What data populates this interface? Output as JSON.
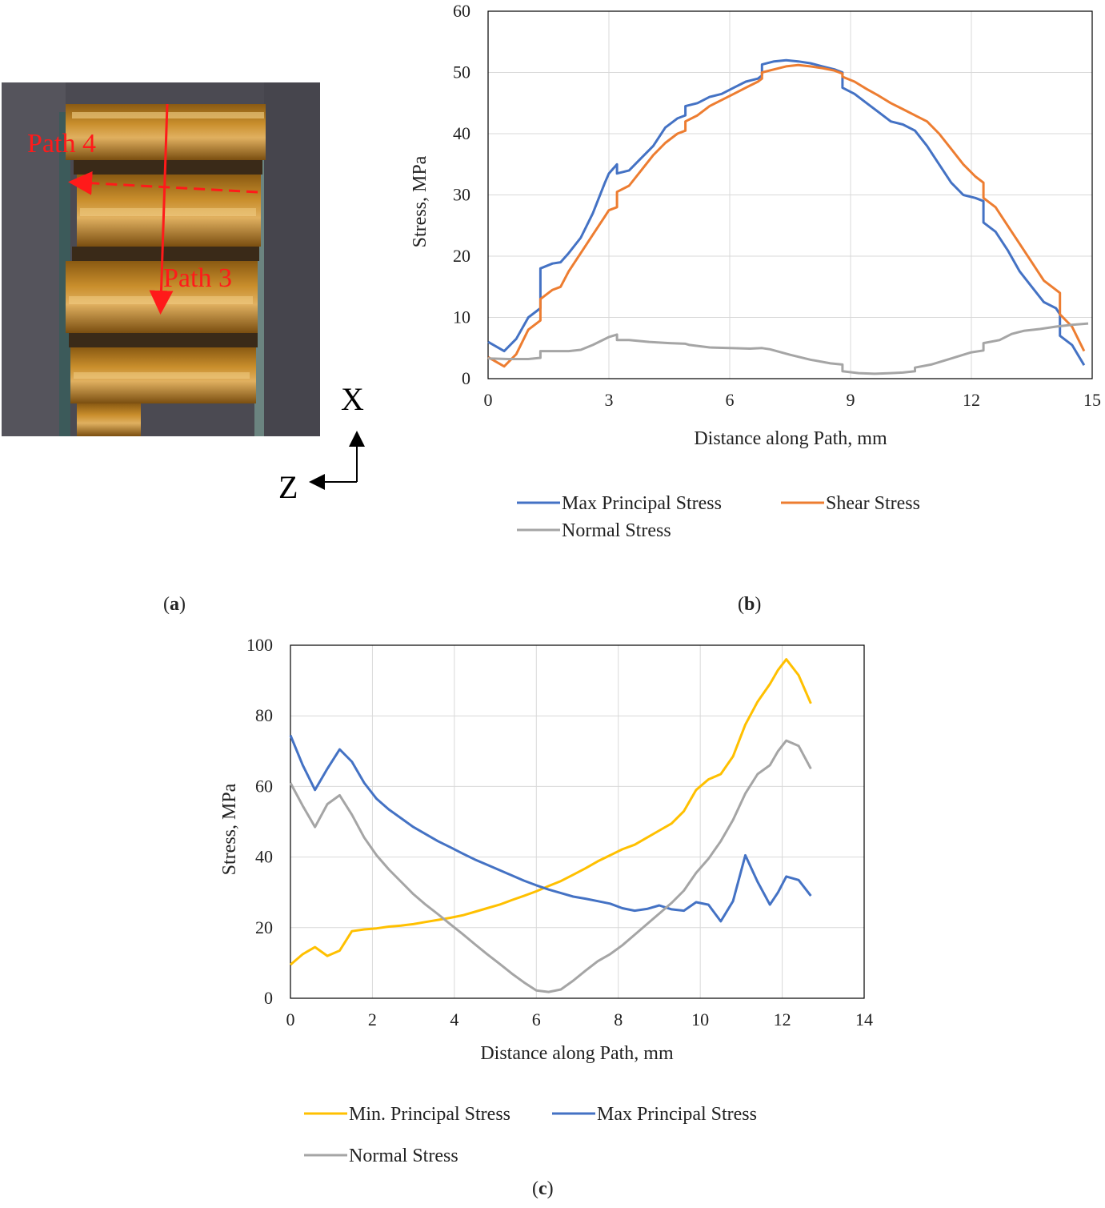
{
  "panels": {
    "a": {
      "paren_open": "(",
      "letter": "a",
      "paren_close": ")"
    },
    "b": {
      "paren_open": "(",
      "letter": "b",
      "paren_close": ")"
    },
    "c": {
      "paren_open": "(",
      "letter": "c",
      "paren_close": ")"
    }
  },
  "photo": {
    "path4_label": "Path 4",
    "path3_label": "Path 3",
    "axis_x_label": "X",
    "axis_z_label": "Z",
    "colors": {
      "annotation": "#ff1a1a",
      "background": "#4b4a52",
      "specimen": "#b07a22"
    }
  },
  "chart_data": [
    {
      "id": "b",
      "type": "line",
      "xlabel": "Distance along Path, mm",
      "ylabel": "Stress, MPa",
      "xlim": [
        0,
        15
      ],
      "ylim": [
        0,
        60
      ],
      "xticks": [
        0,
        3,
        6,
        9,
        12,
        15
      ],
      "yticks": [
        0,
        10,
        20,
        30,
        40,
        50,
        60
      ],
      "grid": true,
      "legend_position": "bottom",
      "series": [
        {
          "name": "Max Principal Stress",
          "color": "#4472c4",
          "x": [
            0,
            0.4,
            0.7,
            1.0,
            1.3,
            1.3,
            1.6,
            1.8,
            2.0,
            2.3,
            2.6,
            2.9,
            3.0,
            3.2,
            3.2,
            3.5,
            3.8,
            4.1,
            4.4,
            4.7,
            4.9,
            4.9,
            5.2,
            5.5,
            5.8,
            6.1,
            6.4,
            6.7,
            6.8,
            6.8,
            7.1,
            7.4,
            7.7,
            8.0,
            8.3,
            8.6,
            8.8,
            8.8,
            9.1,
            9.4,
            9.7,
            10.0,
            10.3,
            10.6,
            10.9,
            11.2,
            11.5,
            11.8,
            12.1,
            12.3,
            12.3,
            12.6,
            12.9,
            13.2,
            13.5,
            13.8,
            14.1,
            14.2,
            14.2,
            14.5,
            14.8
          ],
          "y": [
            6,
            4.5,
            6.5,
            10,
            11.5,
            18,
            18.8,
            19,
            20.5,
            23,
            27,
            32,
            33.5,
            35,
            33.5,
            34,
            36,
            38,
            41,
            42.5,
            43,
            44.5,
            45,
            46,
            46.5,
            47.5,
            48.5,
            49,
            49.5,
            51.3,
            51.8,
            52,
            51.8,
            51.5,
            51,
            50.5,
            50,
            47.5,
            46.5,
            45,
            43.5,
            42,
            41.5,
            40.5,
            38,
            35,
            32,
            30,
            29.5,
            29,
            25.5,
            24,
            21,
            17.5,
            15,
            12.5,
            11.5,
            10.5,
            7,
            5.5,
            2.2
          ]
        },
        {
          "name": "Shear Stress",
          "color": "#ed7d31",
          "x": [
            0,
            0.4,
            0.7,
            1.0,
            1.3,
            1.3,
            1.6,
            1.8,
            2.0,
            2.3,
            2.6,
            2.9,
            3.0,
            3.2,
            3.2,
            3.5,
            3.8,
            4.1,
            4.4,
            4.7,
            4.9,
            4.9,
            5.2,
            5.5,
            5.8,
            6.1,
            6.4,
            6.7,
            6.8,
            6.8,
            7.1,
            7.4,
            7.7,
            8.0,
            8.3,
            8.6,
            8.8,
            8.8,
            9.1,
            9.4,
            9.7,
            10.0,
            10.3,
            10.6,
            10.9,
            11.2,
            11.5,
            11.8,
            12.1,
            12.3,
            12.3,
            12.6,
            12.9,
            13.2,
            13.5,
            13.8,
            14.1,
            14.2,
            14.2,
            14.5,
            14.8
          ],
          "y": [
            3.5,
            2,
            4,
            8,
            9.5,
            13,
            14.5,
            15,
            17.5,
            20.5,
            23.5,
            26.5,
            27.5,
            28,
            30.5,
            31.5,
            34,
            36.5,
            38.5,
            40,
            40.5,
            42,
            43,
            44.5,
            45.5,
            46.5,
            47.5,
            48.5,
            49,
            50,
            50.5,
            51,
            51.2,
            51,
            50.7,
            50.3,
            49.8,
            49.3,
            48.5,
            47.3,
            46.2,
            45,
            44,
            43,
            42,
            40,
            37.5,
            35,
            33,
            32,
            29.5,
            28,
            25,
            22,
            19,
            16,
            14.5,
            14,
            10.5,
            8.5,
            4.5
          ]
        },
        {
          "name": "Normal Stress",
          "color": "#a5a5a5",
          "x": [
            0,
            0.5,
            1.0,
            1.3,
            1.3,
            2.0,
            2.3,
            2.6,
            3.0,
            3.2,
            3.2,
            3.5,
            4.0,
            4.5,
            4.9,
            5.0,
            5.5,
            6.0,
            6.5,
            6.8,
            7.0,
            7.5,
            8.0,
            8.5,
            8.8,
            8.8,
            9.2,
            9.6,
            10.0,
            10.3,
            10.6,
            10.6,
            11.0,
            11.5,
            12.0,
            12.3,
            12.3,
            12.7,
            13.0,
            13.3,
            13.7,
            14.1,
            14.5,
            14.9
          ],
          "y": [
            3.3,
            3.2,
            3.2,
            3.4,
            4.5,
            4.5,
            4.7,
            5.5,
            6.8,
            7.2,
            6.3,
            6.3,
            6.0,
            5.8,
            5.7,
            5.5,
            5.1,
            5.0,
            4.9,
            5.0,
            4.8,
            3.9,
            3.1,
            2.5,
            2.3,
            1.2,
            0.9,
            0.8,
            0.9,
            1.0,
            1.2,
            1.8,
            2.3,
            3.3,
            4.3,
            4.6,
            5.8,
            6.3,
            7.3,
            7.8,
            8.1,
            8.5,
            8.8,
            9.0
          ]
        }
      ]
    },
    {
      "id": "c",
      "type": "line",
      "xlabel": "Distance along Path, mm",
      "ylabel": "Stress, MPa",
      "xlim": [
        0,
        14
      ],
      "ylim": [
        0,
        100
      ],
      "xticks": [
        0,
        2,
        4,
        6,
        8,
        10,
        12,
        14
      ],
      "yticks": [
        0,
        20,
        40,
        60,
        80,
        100
      ],
      "grid": true,
      "legend_position": "bottom",
      "series": [
        {
          "name": "Min. Principal Stress",
          "color": "#ffc000",
          "x": [
            0,
            0.3,
            0.6,
            0.9,
            1.2,
            1.5,
            1.8,
            2.1,
            2.4,
            2.7,
            3.0,
            3.3,
            3.6,
            3.9,
            4.2,
            4.5,
            4.8,
            5.1,
            5.4,
            5.7,
            6.0,
            6.3,
            6.6,
            6.9,
            7.2,
            7.5,
            7.8,
            8.1,
            8.4,
            8.7,
            9.0,
            9.3,
            9.6,
            9.9,
            10.2,
            10.5,
            10.8,
            11.1,
            11.4,
            11.7,
            11.9,
            12.1,
            12.4,
            12.7
          ],
          "y": [
            9.5,
            12.5,
            14.5,
            12,
            13.5,
            19,
            19.5,
            19.8,
            20.3,
            20.6,
            21,
            21.6,
            22.2,
            22.8,
            23.5,
            24.5,
            25.5,
            26.5,
            27.8,
            29,
            30.3,
            31.8,
            33.2,
            35,
            36.8,
            38.8,
            40.5,
            42.2,
            43.5,
            45.5,
            47.5,
            49.5,
            53,
            59,
            62,
            63.5,
            68.5,
            77.5,
            84,
            89,
            93,
            96,
            91.5,
            83.5
          ]
        },
        {
          "name": "Max Principal Stress",
          "color": "#4472c4",
          "x": [
            0,
            0.3,
            0.6,
            0.9,
            1.2,
            1.5,
            1.8,
            2.1,
            2.4,
            2.7,
            3.0,
            3.3,
            3.6,
            3.9,
            4.2,
            4.5,
            4.8,
            5.1,
            5.4,
            5.7,
            6.0,
            6.3,
            6.6,
            6.9,
            7.2,
            7.5,
            7.8,
            8.1,
            8.4,
            8.7,
            9.0,
            9.3,
            9.6,
            9.9,
            10.2,
            10.5,
            10.8,
            11.1,
            11.4,
            11.7,
            11.9,
            12.1,
            12.4,
            12.7
          ],
          "y": [
            74.5,
            66,
            59,
            65,
            70.5,
            67,
            61,
            56.5,
            53.5,
            51,
            48.5,
            46.5,
            44.5,
            42.8,
            41,
            39.3,
            37.8,
            36.3,
            34.8,
            33.3,
            32,
            30.8,
            29.8,
            28.8,
            28.2,
            27.5,
            26.8,
            25.5,
            24.8,
            25.3,
            26.3,
            25.2,
            24.8,
            27.2,
            26.5,
            21.8,
            27.5,
            40.5,
            33,
            26.5,
            30,
            34.5,
            33.5,
            29
          ]
        },
        {
          "name": "Normal Stress",
          "color": "#a5a5a5",
          "x": [
            0,
            0.3,
            0.6,
            0.9,
            1.2,
            1.5,
            1.8,
            2.1,
            2.4,
            2.7,
            3.0,
            3.3,
            3.6,
            3.9,
            4.2,
            4.5,
            4.8,
            5.1,
            5.4,
            5.7,
            6.0,
            6.3,
            6.6,
            6.9,
            7.2,
            7.5,
            7.8,
            8.1,
            8.4,
            8.7,
            9.0,
            9.3,
            9.6,
            9.9,
            10.2,
            10.5,
            10.8,
            11.1,
            11.4,
            11.7,
            11.9,
            12.1,
            12.4,
            12.7
          ],
          "y": [
            61,
            54.5,
            48.5,
            55,
            57.5,
            52,
            45.5,
            40.5,
            36.5,
            33,
            29.5,
            26.5,
            23.8,
            21,
            18.2,
            15.3,
            12.5,
            9.8,
            7,
            4.5,
            2.2,
            1.8,
            2.5,
            5,
            7.8,
            10.5,
            12.5,
            15,
            18,
            21,
            24,
            27,
            30.5,
            35.5,
            39.5,
            44.5,
            50.5,
            58,
            63.5,
            66,
            70,
            73,
            71.5,
            65
          ]
        }
      ]
    }
  ]
}
